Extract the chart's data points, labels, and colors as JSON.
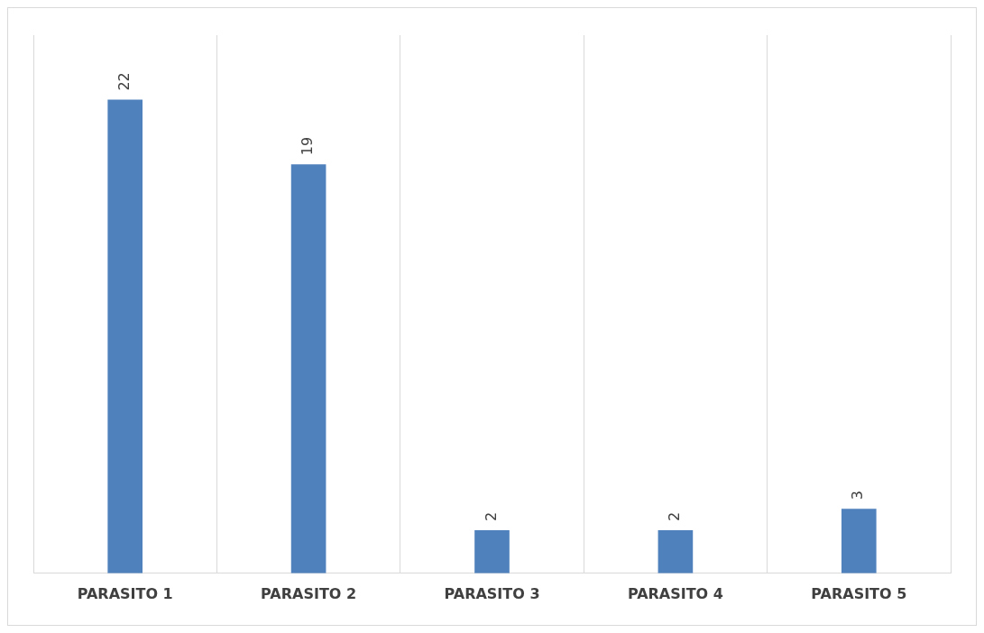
{
  "chart_data": {
    "type": "bar",
    "categories": [
      "PARASITO 1",
      "PARASITO 2",
      "PARASITO 3",
      "PARASITO 4",
      "PARASITO 5"
    ],
    "values": [
      22,
      19,
      2,
      2,
      3
    ],
    "color": "#4f81bd",
    "ylim": [
      0,
      25
    ],
    "data_labels": true,
    "grid": "x",
    "legend": false
  }
}
